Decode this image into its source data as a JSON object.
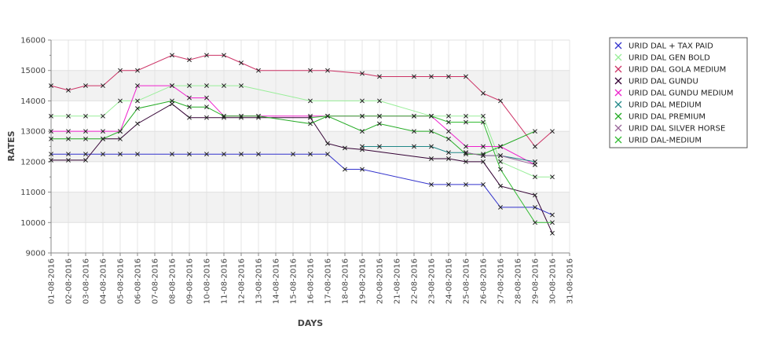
{
  "chart_data": {
    "type": "line",
    "title": "",
    "xlabel": "DAYS",
    "ylabel": "RATES",
    "ylim": [
      9000,
      16000
    ],
    "yticks": [
      9000,
      10000,
      11000,
      12000,
      13000,
      14000,
      15000,
      16000
    ],
    "grid": true,
    "legend_position": "right",
    "x": [
      "01-08-2016",
      "02-08-2016",
      "03-08-2016",
      "04-08-2016",
      "05-08-2016",
      "06-08-2016",
      "07-08-2016",
      "08-08-2016",
      "09-08-2016",
      "10-08-2016",
      "11-08-2016",
      "12-08-2016",
      "13-08-2016",
      "14-08-2016",
      "15-08-2016",
      "16-08-2016",
      "17-08-2016",
      "18-08-2016",
      "19-08-2016",
      "20-08-2016",
      "21-08-2016",
      "22-08-2016",
      "23-08-2016",
      "24-08-2016",
      "25-08-2016",
      "26-08-2016",
      "27-08-2016",
      "28-08-2016",
      "29-08-2016",
      "30-08-2016",
      "31-08-2016"
    ],
    "series": [
      {
        "name": "URID DAL + TAX PAID",
        "color": "#3333cc",
        "points": [
          [
            0,
            12250
          ],
          [
            1,
            12250
          ],
          [
            2,
            12250
          ],
          [
            3,
            12250
          ],
          [
            4,
            12250
          ],
          [
            5,
            12250
          ],
          [
            7,
            12250
          ],
          [
            8,
            12250
          ],
          [
            9,
            12250
          ],
          [
            10,
            12250
          ],
          [
            11,
            12250
          ],
          [
            12,
            12250
          ],
          [
            14,
            12250
          ],
          [
            15,
            12250
          ],
          [
            16,
            12250
          ],
          [
            17,
            11750
          ],
          [
            18,
            11750
          ],
          [
            22,
            11250
          ],
          [
            23,
            11250
          ],
          [
            24,
            11250
          ],
          [
            25,
            11250
          ],
          [
            26,
            10500
          ],
          [
            28,
            10500
          ],
          [
            29,
            10250
          ]
        ]
      },
      {
        "name": "URID DAL GEN BOLD",
        "color": "#99ee99",
        "points": [
          [
            0,
            13500
          ],
          [
            1,
            13500
          ],
          [
            2,
            13500
          ],
          [
            3,
            13500
          ],
          [
            4,
            14000
          ],
          [
            5,
            14000
          ],
          [
            7,
            14500
          ],
          [
            8,
            14500
          ],
          [
            9,
            14500
          ],
          [
            10,
            14500
          ],
          [
            11,
            14500
          ],
          [
            15,
            14000
          ],
          [
            18,
            14000
          ],
          [
            19,
            14000
          ],
          [
            22,
            13500
          ],
          [
            23,
            13500
          ],
          [
            24,
            13500
          ],
          [
            25,
            13500
          ],
          [
            26,
            12000
          ],
          [
            28,
            11500
          ],
          [
            29,
            11500
          ]
        ]
      },
      {
        "name": "URID DAL GOLA MEDIUM",
        "color": "#cc3366",
        "points": [
          [
            0,
            14500
          ],
          [
            1,
            14350
          ],
          [
            2,
            14500
          ],
          [
            3,
            14500
          ],
          [
            4,
            15000
          ],
          [
            5,
            15000
          ],
          [
            7,
            15500
          ],
          [
            8,
            15350
          ],
          [
            9,
            15500
          ],
          [
            10,
            15500
          ],
          [
            11,
            15250
          ],
          [
            12,
            15000
          ],
          [
            15,
            15000
          ],
          [
            16,
            15000
          ],
          [
            18,
            14900
          ],
          [
            19,
            14800
          ],
          [
            21,
            14800
          ],
          [
            22,
            14800
          ],
          [
            23,
            14800
          ],
          [
            24,
            14800
          ],
          [
            25,
            14250
          ],
          [
            26,
            14000
          ],
          [
            28,
            12500
          ],
          [
            29,
            13000
          ]
        ]
      },
      {
        "name": "URID DAL GUNDU",
        "color": "#330033",
        "points": [
          [
            0,
            12050
          ],
          [
            1,
            12050
          ],
          [
            2,
            12050
          ],
          [
            3,
            12750
          ],
          [
            4,
            12750
          ],
          [
            5,
            13250
          ],
          [
            7,
            13900
          ],
          [
            8,
            13450
          ],
          [
            9,
            13450
          ],
          [
            10,
            13450
          ],
          [
            11,
            13450
          ],
          [
            12,
            13450
          ],
          [
            15,
            13450
          ],
          [
            16,
            12600
          ],
          [
            17,
            12450
          ],
          [
            18,
            12400
          ],
          [
            22,
            12100
          ],
          [
            23,
            12100
          ],
          [
            24,
            12000
          ],
          [
            25,
            12000
          ],
          [
            26,
            11200
          ],
          [
            28,
            10900
          ],
          [
            29,
            9650
          ]
        ]
      },
      {
        "name": "URID DAL GUNDU MEDIUM",
        "color": "#ee22cc",
        "points": [
          [
            0,
            13000
          ],
          [
            1,
            13000
          ],
          [
            2,
            13000
          ],
          [
            3,
            13000
          ],
          [
            4,
            13000
          ],
          [
            5,
            14500
          ],
          [
            7,
            14500
          ],
          [
            8,
            14100
          ],
          [
            9,
            14100
          ],
          [
            10,
            13500
          ],
          [
            11,
            13500
          ],
          [
            12,
            13500
          ],
          [
            15,
            13500
          ],
          [
            16,
            13500
          ],
          [
            18,
            13500
          ],
          [
            19,
            13500
          ],
          [
            21,
            13500
          ],
          [
            22,
            13500
          ],
          [
            23,
            13000
          ],
          [
            24,
            12500
          ],
          [
            25,
            12500
          ],
          [
            26,
            12500
          ],
          [
            28,
            11900
          ]
        ]
      },
      {
        "name": "URID DAL MEDIUM",
        "color": "#228888",
        "points": [
          [
            18,
            12500
          ],
          [
            19,
            12500
          ],
          [
            21,
            12500
          ],
          [
            22,
            12500
          ],
          [
            23,
            12300
          ],
          [
            24,
            12300
          ],
          [
            25,
            12200
          ],
          [
            26,
            12200
          ],
          [
            28,
            12000
          ]
        ]
      },
      {
        "name": "URID DAL PREMIUM",
        "color": "#22aa22",
        "points": [
          [
            0,
            12750
          ],
          [
            1,
            12750
          ],
          [
            2,
            12750
          ],
          [
            3,
            12750
          ],
          [
            4,
            13000
          ],
          [
            5,
            13750
          ],
          [
            7,
            14000
          ],
          [
            8,
            13800
          ],
          [
            9,
            13800
          ],
          [
            10,
            13500
          ],
          [
            11,
            13500
          ],
          [
            12,
            13500
          ],
          [
            15,
            13250
          ],
          [
            16,
            13500
          ],
          [
            18,
            13000
          ],
          [
            19,
            13250
          ],
          [
            21,
            13000
          ],
          [
            22,
            13000
          ],
          [
            23,
            12750
          ],
          [
            24,
            12250
          ],
          [
            25,
            12250
          ],
          [
            26,
            12500
          ],
          [
            28,
            13000
          ]
        ]
      },
      {
        "name": "URID DAL SILVER HORSE",
        "color": "#996699",
        "points": [
          [
            24,
            12300
          ],
          [
            25,
            12200
          ],
          [
            26,
            12200
          ],
          [
            28,
            11900
          ]
        ]
      },
      {
        "name": "URID DAL-MEDIUM",
        "color": "#33bb33",
        "points": [
          [
            15,
            13450
          ],
          [
            16,
            13500
          ],
          [
            18,
            13500
          ],
          [
            19,
            13500
          ],
          [
            21,
            13500
          ],
          [
            22,
            13500
          ],
          [
            23,
            13300
          ],
          [
            24,
            13300
          ],
          [
            25,
            13300
          ],
          [
            26,
            11750
          ],
          [
            28,
            10000
          ],
          [
            29,
            10000
          ]
        ]
      }
    ]
  }
}
